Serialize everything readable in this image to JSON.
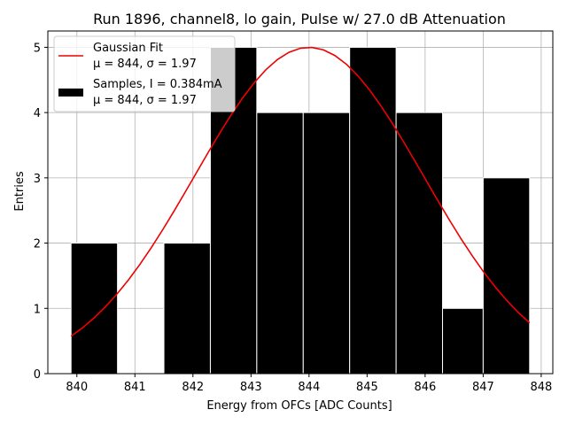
{
  "chart_data": {
    "type": "histogram",
    "title": "Run 1896, channel8, lo gain, Pulse w/ 27.0 dB Attenuation",
    "xlabel": "Energy from OFCs [ADC Counts]",
    "ylabel": "Entries",
    "xlim": [
      839.5,
      848.2
    ],
    "ylim": [
      0,
      5.25
    ],
    "xticks": [
      840,
      841,
      842,
      843,
      844,
      845,
      846,
      847,
      848
    ],
    "yticks": [
      0,
      1,
      2,
      3,
      4,
      5
    ],
    "grid": true,
    "bins": [
      {
        "x0": 839.9,
        "x1": 840.7,
        "count": 2
      },
      {
        "x0": 840.7,
        "x1": 841.5,
        "count": 0
      },
      {
        "x0": 841.5,
        "x1": 842.3,
        "count": 2
      },
      {
        "x0": 842.3,
        "x1": 843.1,
        "count": 5
      },
      {
        "x0": 843.1,
        "x1": 843.9,
        "count": 4
      },
      {
        "x0": 843.9,
        "x1": 844.7,
        "count": 4
      },
      {
        "x0": 844.7,
        "x1": 845.5,
        "count": 5
      },
      {
        "x0": 845.5,
        "x1": 846.3,
        "count": 4
      },
      {
        "x0": 846.3,
        "x1": 847.0,
        "count": 1
      },
      {
        "x0": 847.0,
        "x1": 847.8,
        "count": 3
      }
    ],
    "fit": {
      "name": "Gaussian Fit",
      "mu": 844.0,
      "sigma": 1.97,
      "amplitude": 5.0,
      "x_range": [
        839.9,
        847.8
      ],
      "color": "#ee0000"
    },
    "legend": {
      "position": "top-left",
      "entries": [
        {
          "kind": "line",
          "line1": "Gaussian Fit",
          "line2": "μ = 844, σ = 1.97",
          "color": "#ee0000"
        },
        {
          "kind": "patch",
          "line1": "Samples, I = 0.384mA",
          "line2": "μ = 844, σ = 1.97",
          "color": "#000000"
        }
      ]
    },
    "colors": {
      "bar_fill": "#000000",
      "bar_edge": "#ffffff",
      "grid": "#b0b0b0"
    }
  }
}
